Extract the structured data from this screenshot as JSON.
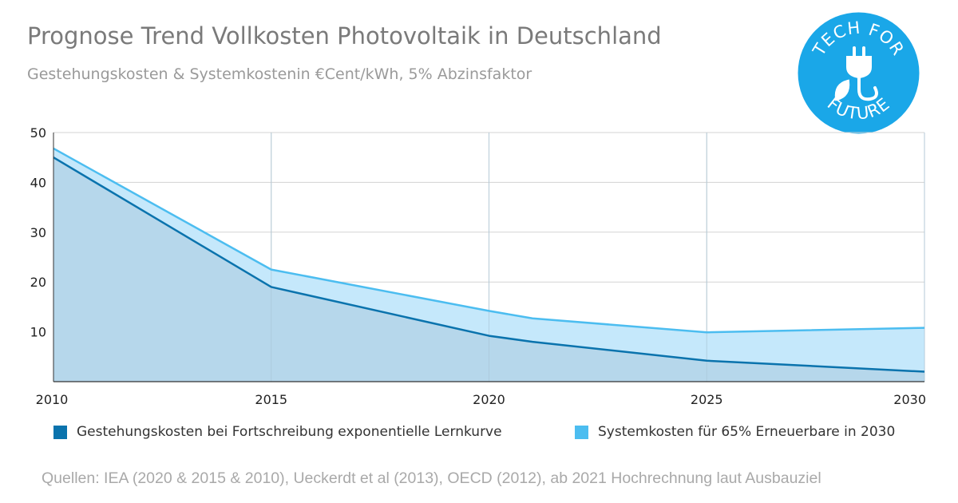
{
  "header": {
    "title": "Prognose Trend Vollkosten Photovoltaik in Deutschland",
    "subtitle": "Gestehungskosten & Systemkostenin €Cent/kWh, 5% Abzinsfaktor"
  },
  "logo": {
    "top_text": "TECH FOR",
    "bottom_text": "FUTURE",
    "icon": "plug-leaf-icon",
    "color": "#1aa7e8"
  },
  "chart_data": {
    "type": "area",
    "x_ticks": [
      "2010",
      "2015",
      "2020",
      "2025",
      "2030"
    ],
    "y_ticks": [
      "10",
      "20",
      "30",
      "40",
      "50"
    ],
    "xlim": [
      2010,
      2030
    ],
    "ylim": [
      0,
      50
    ],
    "grid": true,
    "series": [
      {
        "name": "Gestehungskosten bei Fortschreibung exponentielle Lernkurve",
        "color": "#0a73ad",
        "fill": "#b5d6ea",
        "points": [
          [
            2010,
            45
          ],
          [
            2015,
            19
          ],
          [
            2020,
            9.2
          ],
          [
            2021,
            8
          ],
          [
            2025,
            4.2
          ],
          [
            2030,
            2
          ]
        ]
      },
      {
        "name": "Systemkosten für 65% Erneuerbare in 2030",
        "color": "#4cbdf0",
        "fill": "#c5e8fb",
        "points": [
          [
            2010,
            46.8
          ],
          [
            2015,
            22.5
          ],
          [
            2020,
            14.2
          ],
          [
            2021,
            12.7
          ],
          [
            2025,
            9.9
          ],
          [
            2030,
            10.8
          ]
        ]
      }
    ]
  },
  "legend": [
    {
      "label": "Gestehungskosten bei Fortschreibung exponentielle Lernkurve",
      "color": "#0a73ad"
    },
    {
      "label": "Systemkosten für 65% Erneuerbare in 2030",
      "color": "#4cbdf0"
    }
  ],
  "footer": {
    "source": "Quellen: IEA (2020 & 2015 & 2010), Ueckerdt et al (2013), OECD (2012), ab 2021 Hochrechnung laut Ausbauziel"
  }
}
